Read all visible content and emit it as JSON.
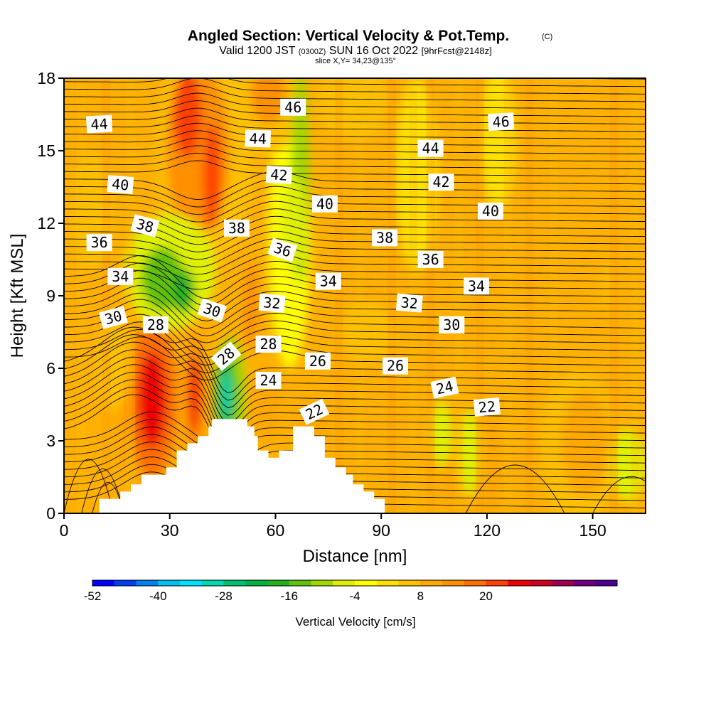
{
  "title": {
    "main": "Angled Section: Vertical Velocity & Pot.Temp.",
    "main_suffix": "(C)",
    "valid_prefix": "Valid 1200 JST",
    "valid_utc": "(0300Z)",
    "valid_date": "SUN 16 Oct 2022",
    "forecast": "[9hrFcst@2148z]",
    "slice": "slice X,Y= 34,23@135°"
  },
  "chart_data": {
    "type": "heatmap",
    "title": "Angled Section: Vertical Velocity & Pot.Temp.",
    "xlabel": "Distance [nm]",
    "ylabel": "Height [Kft MSL]",
    "xlim": [
      0,
      165
    ],
    "ylim": [
      0,
      18
    ],
    "x_ticks": [
      0,
      30,
      60,
      90,
      120,
      150
    ],
    "y_ticks": [
      0,
      3,
      6,
      9,
      12,
      15,
      18
    ],
    "x_tick_labels": [
      "0",
      "30",
      "60",
      "90",
      "120",
      "150"
    ],
    "y_tick_labels": [
      "0",
      "3",
      "6",
      "9",
      "12",
      "15",
      "18"
    ],
    "background_color": "#ffb000",
    "terrain": [
      [
        0,
        0
      ],
      [
        10,
        0
      ],
      [
        10,
        0.6
      ],
      [
        16,
        0.6
      ],
      [
        16,
        0.9
      ],
      [
        19,
        0.9
      ],
      [
        19,
        1.2
      ],
      [
        22,
        1.2
      ],
      [
        22,
        1.6
      ],
      [
        29,
        1.6
      ],
      [
        29,
        1.9
      ],
      [
        32,
        1.9
      ],
      [
        32,
        2.6
      ],
      [
        35,
        2.6
      ],
      [
        35,
        2.9
      ],
      [
        38,
        2.9
      ],
      [
        38,
        3.2
      ],
      [
        41,
        3.2
      ],
      [
        41,
        3.6
      ],
      [
        42,
        3.6
      ],
      [
        42,
        3.9
      ],
      [
        52,
        3.9
      ],
      [
        52,
        3.6
      ],
      [
        54,
        3.6
      ],
      [
        54,
        3.2
      ],
      [
        55,
        3.2
      ],
      [
        55,
        2.6
      ],
      [
        58,
        2.6
      ],
      [
        58,
        2.3
      ],
      [
        61,
        2.3
      ],
      [
        61,
        2.6
      ],
      [
        65,
        2.6
      ],
      [
        65,
        3.6
      ],
      [
        71,
        3.6
      ],
      [
        71,
        3.2
      ],
      [
        74,
        3.2
      ],
      [
        74,
        2.3
      ],
      [
        77,
        2.3
      ],
      [
        77,
        1.9
      ],
      [
        80,
        1.9
      ],
      [
        80,
        1.6
      ],
      [
        82,
        1.6
      ],
      [
        82,
        1.2
      ],
      [
        85,
        1.2
      ],
      [
        85,
        0.9
      ],
      [
        88,
        0.9
      ],
      [
        88,
        0.6
      ],
      [
        91,
        0.6
      ],
      [
        91,
        0
      ],
      [
        165,
        0
      ]
    ],
    "velocity_blobs": [
      {
        "x": 25,
        "y": 4.7,
        "rx": 4,
        "ry": 2.0,
        "value": 24
      },
      {
        "x": 25,
        "y": 4.7,
        "rx": 7,
        "ry": 3.2,
        "value": 16
      },
      {
        "x": 24,
        "y": 4.6,
        "rx": 10,
        "ry": 4.3,
        "value": 8
      },
      {
        "x": 37,
        "y": 4.9,
        "rx": 1.6,
        "ry": 1.6,
        "value": 24
      },
      {
        "x": 37,
        "y": 4.9,
        "rx": 2.8,
        "ry": 2.6,
        "value": 14
      },
      {
        "x": 35,
        "y": 16.5,
        "rx": 4,
        "ry": 1.8,
        "value": 20
      },
      {
        "x": 42,
        "y": 14.0,
        "rx": 2.5,
        "ry": 2.2,
        "value": 22
      },
      {
        "x": 38,
        "y": 15.0,
        "rx": 9,
        "ry": 3.5,
        "value": 12
      },
      {
        "x": 40,
        "y": 15.0,
        "rx": 14,
        "ry": 5.0,
        "value": 6
      },
      {
        "x": 58,
        "y": 17.3,
        "rx": 5,
        "ry": 1.2,
        "value": 12
      },
      {
        "x": 58,
        "y": 16.8,
        "rx": 8,
        "ry": 2.0,
        "value": 6
      },
      {
        "x": 67,
        "y": 14.0,
        "rx": 2.5,
        "ry": 4.5,
        "value": -10
      },
      {
        "x": 65,
        "y": 12.0,
        "rx": 3.5,
        "ry": 2.0,
        "value": -8
      },
      {
        "x": 64,
        "y": 11.5,
        "rx": 6,
        "ry": 5.5,
        "value": -4
      },
      {
        "x": 28,
        "y": 9.7,
        "rx": 6,
        "ry": 1.3,
        "value": -14
      },
      {
        "x": 30,
        "y": 10.0,
        "rx": 13,
        "ry": 2.4,
        "value": -8
      },
      {
        "x": 34,
        "y": 9.2,
        "rx": 3,
        "ry": 0.9,
        "value": -18
      },
      {
        "x": 46,
        "y": 4.9,
        "rx": 1.3,
        "ry": 1.0,
        "value": -30
      },
      {
        "x": 46,
        "y": 4.9,
        "rx": 2.8,
        "ry": 1.6,
        "value": -20
      },
      {
        "x": 47,
        "y": 5.0,
        "rx": 4.5,
        "ry": 2.3,
        "value": -10
      },
      {
        "x": 53,
        "y": 8.6,
        "rx": 2.0,
        "ry": 1.8,
        "value": 14
      },
      {
        "x": 57,
        "y": 4.5,
        "rx": 5,
        "ry": 1.5,
        "value": 10
      },
      {
        "x": 70,
        "y": 3.8,
        "rx": 4,
        "ry": 1.0,
        "value": 10
      },
      {
        "x": 111,
        "y": 2.0,
        "rx": 3,
        "ry": 2.8,
        "value": 10
      },
      {
        "x": 121,
        "y": 1.9,
        "rx": 3,
        "ry": 2.2,
        "value": 10
      },
      {
        "x": 148,
        "y": 2.9,
        "rx": 7,
        "ry": 2.2,
        "value": 8
      },
      {
        "x": 146,
        "y": 2.7,
        "rx": 11,
        "ry": 3.2,
        "value": 4
      },
      {
        "x": 107,
        "y": 3.3,
        "rx": 3,
        "ry": 1.4,
        "value": -6
      },
      {
        "x": 115,
        "y": 2.5,
        "rx": 3,
        "ry": 1.8,
        "value": -6
      },
      {
        "x": 160,
        "y": 2.0,
        "rx": 5,
        "ry": 1.5,
        "value": -6
      },
      {
        "x": 8,
        "y": 12.5,
        "rx": 6,
        "ry": 2.5,
        "value": 4
      },
      {
        "x": 14,
        "y": 6.2,
        "rx": 5,
        "ry": 2.0,
        "value": 4
      },
      {
        "x": 82,
        "y": 17.0,
        "rx": 10,
        "ry": 1.6,
        "value": 4
      },
      {
        "x": 86,
        "y": 7.5,
        "rx": 8,
        "ry": 1.3,
        "value": 4
      },
      {
        "x": 100,
        "y": 14.0,
        "rx": 6,
        "ry": 4.0,
        "value": 2
      },
      {
        "x": 154,
        "y": 9.5,
        "rx": 1.5,
        "ry": 1.1,
        "value": 6
      },
      {
        "x": 123,
        "y": 15.5,
        "rx": 5,
        "ry": 3.0,
        "value": 2
      }
    ],
    "contour_labels": [
      {
        "text": "44",
        "x": 10,
        "y": 16.1,
        "angle": -3
      },
      {
        "text": "46",
        "x": 65,
        "y": 16.8,
        "angle": 0
      },
      {
        "text": "46",
        "x": 124,
        "y": 16.2,
        "angle": -3
      },
      {
        "text": "44",
        "x": 55,
        "y": 15.5,
        "angle": 2
      },
      {
        "text": "44",
        "x": 104,
        "y": 15.1,
        "angle": 0
      },
      {
        "text": "42",
        "x": 61,
        "y": 14.0,
        "angle": 4
      },
      {
        "text": "42",
        "x": 107,
        "y": 13.7,
        "angle": 0
      },
      {
        "text": "40",
        "x": 16,
        "y": 13.6,
        "angle": 5
      },
      {
        "text": "40",
        "x": 74,
        "y": 12.8,
        "angle": 0
      },
      {
        "text": "40",
        "x": 121,
        "y": 12.5,
        "angle": 0
      },
      {
        "text": "38",
        "x": 23,
        "y": 11.9,
        "angle": 15
      },
      {
        "text": "38",
        "x": 49,
        "y": 11.8,
        "angle": 0
      },
      {
        "text": "38",
        "x": 91,
        "y": 11.4,
        "angle": 0
      },
      {
        "text": "36",
        "x": 10,
        "y": 11.2,
        "angle": 0
      },
      {
        "text": "36",
        "x": 62,
        "y": 10.9,
        "angle": 18
      },
      {
        "text": "36",
        "x": 104,
        "y": 10.5,
        "angle": 0
      },
      {
        "text": "34",
        "x": 16,
        "y": 9.8,
        "angle": 0
      },
      {
        "text": "34",
        "x": 75,
        "y": 9.6,
        "angle": 0
      },
      {
        "text": "34",
        "x": 117,
        "y": 9.4,
        "angle": 0
      },
      {
        "text": "32",
        "x": 59,
        "y": 8.7,
        "angle": 5
      },
      {
        "text": "32",
        "x": 98,
        "y": 8.7,
        "angle": 5
      },
      {
        "text": "30",
        "x": 14,
        "y": 8.1,
        "angle": -15
      },
      {
        "text": "30",
        "x": 42,
        "y": 8.4,
        "angle": 18
      },
      {
        "text": "30",
        "x": 110,
        "y": 7.8,
        "angle": 0
      },
      {
        "text": "28",
        "x": 26,
        "y": 7.8,
        "angle": 0
      },
      {
        "text": "28",
        "x": 58,
        "y": 7.0,
        "angle": 0
      },
      {
        "text": "28",
        "x": 46,
        "y": 6.5,
        "angle": -40
      },
      {
        "text": "26",
        "x": 72,
        "y": 6.3,
        "angle": 0
      },
      {
        "text": "26",
        "x": 94,
        "y": 6.1,
        "angle": 0
      },
      {
        "text": "24",
        "x": 58,
        "y": 5.5,
        "angle": 0
      },
      {
        "text": "24",
        "x": 108,
        "y": 5.2,
        "angle": -12
      },
      {
        "text": "22",
        "x": 71,
        "y": 4.2,
        "angle": -25
      },
      {
        "text": "22",
        "x": 120,
        "y": 4.4,
        "angle": -5
      }
    ],
    "colorbar": {
      "label": "Vertical Velocity [cm/s]",
      "tick_labels": [
        "-52",
        "-40",
        "-28",
        "-16",
        "-4",
        "8",
        "20"
      ],
      "tick_values": [
        -52,
        -40,
        -28,
        -16,
        -4,
        8,
        20
      ],
      "min": -52,
      "step": 4,
      "colors": [
        "#0000ff",
        "#0040f0",
        "#0080f0",
        "#00c0f0",
        "#00e0ff",
        "#00d8b0",
        "#00c070",
        "#00b040",
        "#20b020",
        "#60c010",
        "#a0d800",
        "#e0f000",
        "#ffff00",
        "#ffe000",
        "#ffc000",
        "#ffa800",
        "#ff9000",
        "#ff7000",
        "#ff4000",
        "#f00000",
        "#d00020",
        "#a00050",
        "#6a0080",
        "#4b0090"
      ]
    }
  }
}
